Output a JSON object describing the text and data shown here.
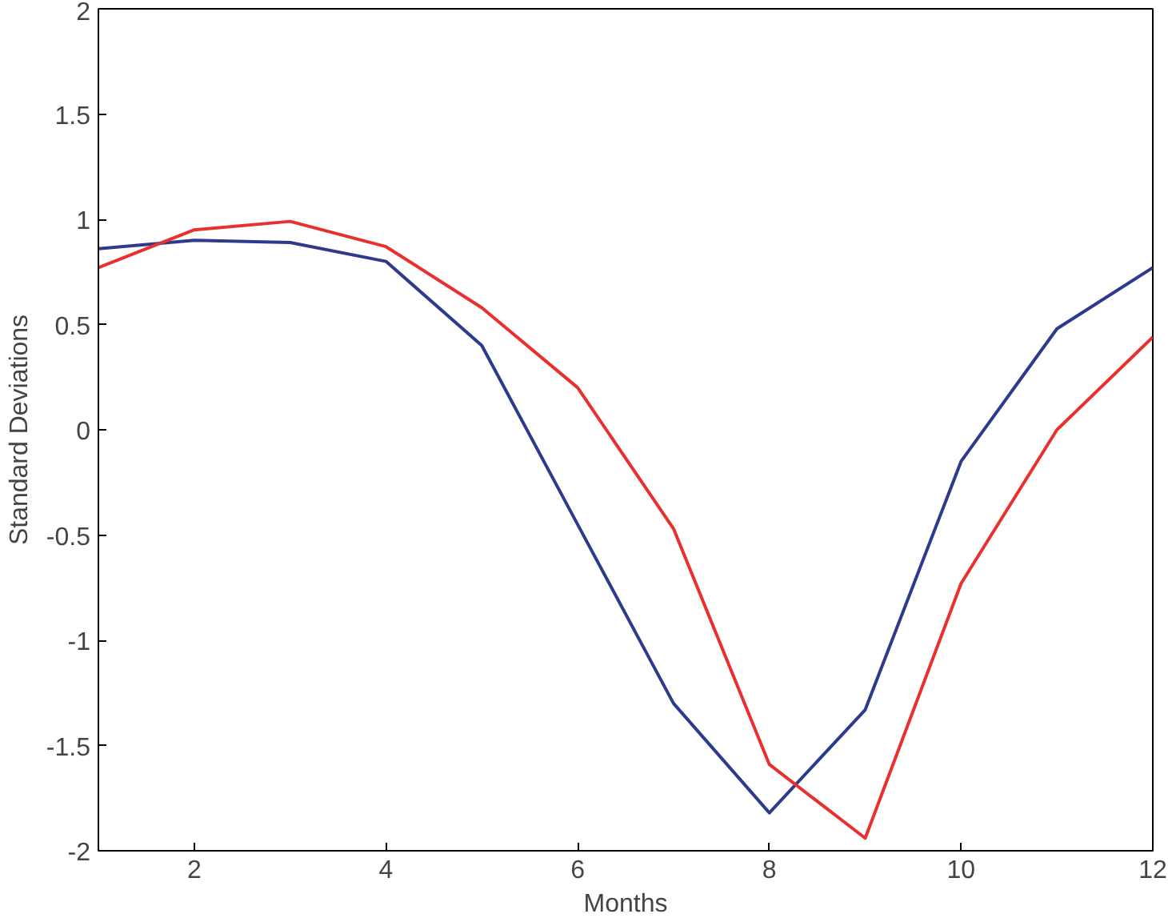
{
  "chart_data": {
    "type": "line",
    "xlabel": "Months",
    "ylabel": "Standard Deviations",
    "x": [
      1,
      2,
      3,
      4,
      5,
      6,
      7,
      8,
      9,
      10,
      11,
      12
    ],
    "series": [
      {
        "color": "#2e3a8c",
        "values": [
          0.86,
          0.9,
          0.89,
          0.8,
          0.4,
          -0.45,
          -1.3,
          -1.82,
          -1.33,
          -0.15,
          0.48,
          0.77
        ]
      },
      {
        "color": "#e8312f",
        "values": [
          0.77,
          0.95,
          0.99,
          0.87,
          0.58,
          0.2,
          -0.47,
          -1.59,
          -1.94,
          -0.73,
          0.0,
          0.44
        ]
      }
    ],
    "xlim": [
      1,
      12
    ],
    "ylim": [
      -2,
      2
    ],
    "xticks": [
      2,
      4,
      6,
      8,
      10,
      12
    ],
    "yticks": [
      -2,
      -1.5,
      -1,
      -0.5,
      0,
      0.5,
      1,
      1.5,
      2
    ]
  }
}
